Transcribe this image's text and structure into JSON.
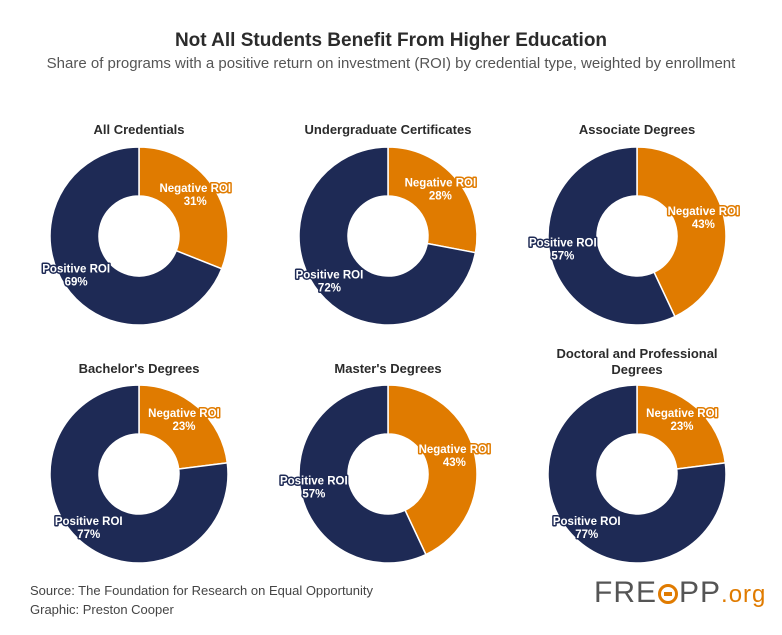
{
  "chart_title": "Not All Students Benefit From Higher Education",
  "chart_subtitle": "Share of programs with a positive return on investment (ROI) by credential type, weighted by enrollment",
  "colors": {
    "positive": "#1e2a55",
    "negative": "#e07b00"
  },
  "chart_data": [
    {
      "type": "pie",
      "title": "All Credentials",
      "slices": [
        {
          "label": "Negative ROI",
          "value": 31,
          "display": "31%"
        },
        {
          "label": "Positive ROI",
          "value": 69,
          "display": "69%"
        }
      ]
    },
    {
      "type": "pie",
      "title": "Undergraduate Certificates",
      "slices": [
        {
          "label": "Negative ROI",
          "value": 28,
          "display": "28%"
        },
        {
          "label": "Positive ROI",
          "value": 72,
          "display": "72%"
        }
      ]
    },
    {
      "type": "pie",
      "title": "Associate Degrees",
      "slices": [
        {
          "label": "Negative ROI",
          "value": 43,
          "display": "43%"
        },
        {
          "label": "Positive ROI",
          "value": 57,
          "display": "57%"
        }
      ]
    },
    {
      "type": "pie",
      "title": "Bachelor's Degrees",
      "slices": [
        {
          "label": "Negative ROI",
          "value": 23,
          "display": "23%"
        },
        {
          "label": "Positive ROI",
          "value": 77,
          "display": "77%"
        }
      ]
    },
    {
      "type": "pie",
      "title": "Master's Degrees",
      "slices": [
        {
          "label": "Negative ROI",
          "value": 43,
          "display": "43%"
        },
        {
          "label": "Positive ROI",
          "value": 57,
          "display": "57%"
        }
      ]
    },
    {
      "type": "pie",
      "title": "Doctoral and Professional Degrees",
      "slices": [
        {
          "label": "Negative ROI",
          "value": 23,
          "display": "23%"
        },
        {
          "label": "Positive ROI",
          "value": 77,
          "display": "77%"
        }
      ]
    }
  ],
  "source": "Source: The Foundation for Research on Equal Opportunity",
  "graphic": "Graphic: Preston Cooper",
  "logo": {
    "left": "FRE",
    "mid": "PP",
    "right": ".org"
  }
}
